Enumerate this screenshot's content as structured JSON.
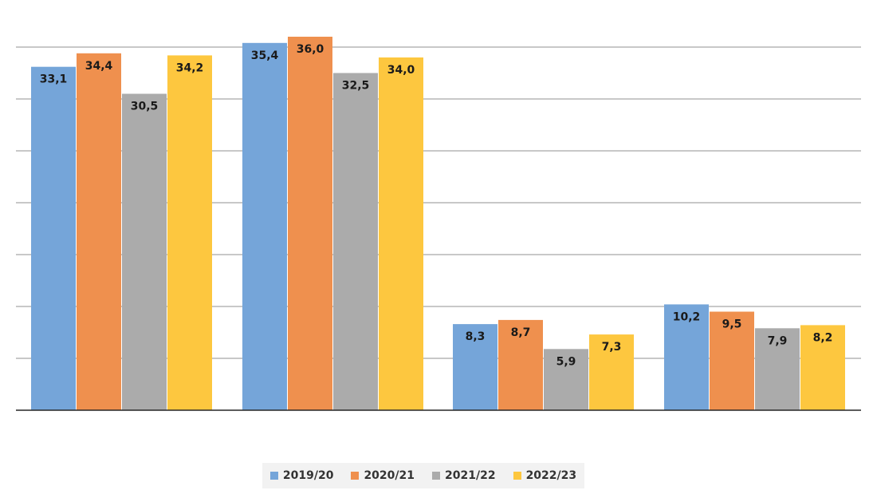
{
  "chart_data": {
    "type": "bar",
    "title": "",
    "xlabel": "",
    "ylabel": "",
    "categories": [
      "",
      "",
      "",
      ""
    ],
    "ylim": [
      0,
      40
    ],
    "grid": true,
    "legend_position": "bottom",
    "series": [
      {
        "name": "2019/20",
        "color": "#75a5d9",
        "values": [
          33.1,
          35.4,
          8.3,
          10.2
        ],
        "labels": [
          "33,1",
          "35,4",
          "8,3",
          "10,2"
        ]
      },
      {
        "name": "2020/21",
        "color": "#ef904e",
        "values": [
          34.4,
          36.0,
          8.7,
          9.5
        ],
        "labels": [
          "34,4",
          "36,0",
          "8,7",
          "9,5"
        ]
      },
      {
        "name": "2021/22",
        "color": "#ababab",
        "values": [
          30.5,
          32.5,
          5.9,
          7.9
        ],
        "labels": [
          "30,5",
          "32,5",
          "5,9",
          "7,9"
        ]
      },
      {
        "name": "2022/23",
        "color": "#fdc73f",
        "values": [
          34.2,
          34.0,
          7.3,
          8.2
        ],
        "labels": [
          "34,2",
          "34,0",
          "7,3",
          "8,2"
        ]
      }
    ]
  }
}
